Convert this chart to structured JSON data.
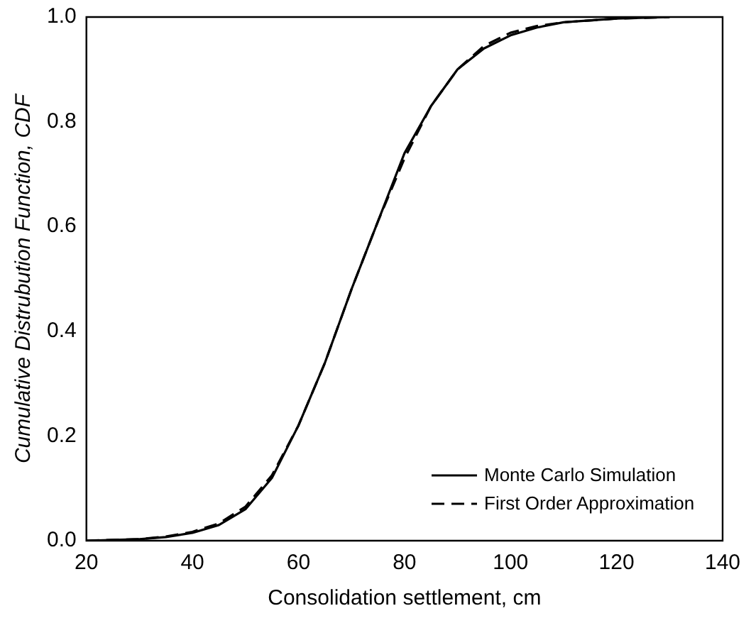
{
  "chart_data": {
    "type": "line",
    "xlabel": "Consolidation settlement, cm",
    "ylabel": "Cumulative Distrubution Function, CDF",
    "xlim": [
      20,
      140
    ],
    "xticks": [
      20,
      40,
      60,
      80,
      100,
      120,
      140
    ],
    "ylim": [
      0,
      1
    ],
    "yticks": [
      {
        "value": 0,
        "label": "0.0"
      },
      {
        "value": 0.2,
        "label": "0.2"
      },
      {
        "value": 0.4,
        "label": "0.4"
      },
      {
        "value": 0.6,
        "label": "0.6"
      },
      {
        "value": 0.8,
        "label": "0.8"
      },
      {
        "value": 1,
        "label": "1.0"
      }
    ],
    "grid": false,
    "legend": "bottom right",
    "marker": "none",
    "series": [
      {
        "name": "Monte Carlo Simulation",
        "color": "#000000",
        "line_style": "solid",
        "x": [
          20,
          30,
          35,
          40,
          45,
          50,
          55,
          60,
          65,
          70,
          75,
          80,
          85,
          90,
          95,
          100,
          105,
          110,
          120,
          130
        ],
        "values": [
          0,
          0.003,
          0.007,
          0.015,
          0.03,
          0.06,
          0.12,
          0.22,
          0.34,
          0.48,
          0.61,
          0.74,
          0.83,
          0.9,
          0.94,
          0.965,
          0.98,
          0.99,
          0.997,
          1
        ]
      },
      {
        "name": "First Order Approximation",
        "color": "#000000",
        "line_style": "dashed",
        "x": [
          20,
          30,
          35,
          40,
          45,
          50,
          55,
          60,
          65,
          70,
          75,
          80,
          85,
          90,
          95,
          100,
          105,
          110,
          120,
          130
        ],
        "values": [
          0,
          0.003,
          0.008,
          0.017,
          0.033,
          0.065,
          0.125,
          0.22,
          0.34,
          0.48,
          0.61,
          0.73,
          0.83,
          0.9,
          0.945,
          0.97,
          0.983,
          0.99,
          0.997,
          1
        ]
      }
    ]
  }
}
